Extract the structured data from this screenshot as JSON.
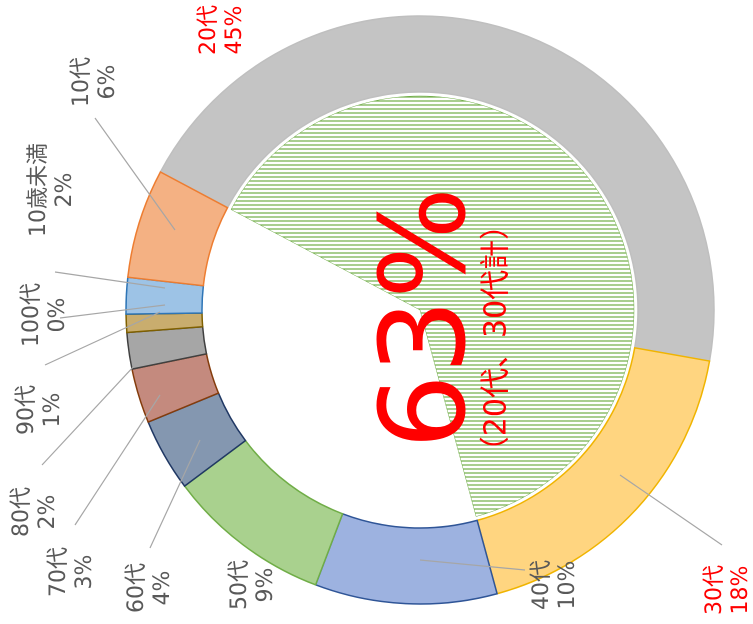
{
  "chart_data": {
    "type": "donut",
    "categories": [
      "20代",
      "30代",
      "40代",
      "50代",
      "60代",
      "70代",
      "80代",
      "90代",
      "100代",
      "10歳未満",
      "10代"
    ],
    "values": [
      45,
      18,
      10,
      9,
      4,
      3,
      2,
      1,
      0,
      2,
      6
    ],
    "value_labels": [
      "45%",
      "18%",
      "10%",
      "9%",
      "4%",
      "3%",
      "2%",
      "1%",
      "0%",
      "2%",
      "6%"
    ],
    "colors": [
      "#c4c4c4",
      "#ffd580",
      "#9db2e0",
      "#a9d18e",
      "#8497b0",
      "#c48a7e",
      "#a6a6a6",
      "#c9ad6e",
      "#bf9000",
      "#9dc3e6",
      "#f4b183"
    ],
    "border_colors": [
      "#bfbfbf",
      "#f0b400",
      "#2f5597",
      "#70ad47",
      "#203864",
      "#843c0c",
      "#404040",
      "#7f6000",
      "#7f6000",
      "#2e75b6",
      "#ed7d31"
    ],
    "label_colors": [
      "#ff0000",
      "#ff0000",
      "#595959",
      "#595959",
      "#595959",
      "#595959",
      "#595959",
      "#595959",
      "#595959",
      "#595959",
      "#595959"
    ],
    "annotation": "63%",
    "annotation_note": "（20代、30代計）",
    "annotation_color": "#ff0000",
    "inner_color": "#70ad47"
  }
}
